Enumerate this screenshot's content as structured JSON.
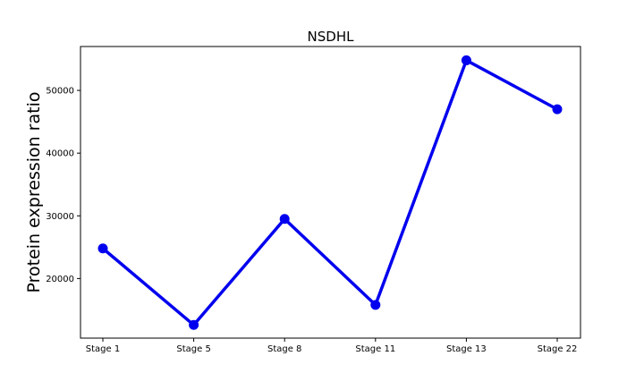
{
  "chart_data": {
    "type": "line",
    "title": "NSDHL",
    "xlabel": "",
    "ylabel": "Protein expression ratio",
    "categories": [
      "Stage 1",
      "Stage 5",
      "Stage 8",
      "Stage 11",
      "Stage 13",
      "Stage 22"
    ],
    "series": [
      {
        "values": [
          24800,
          12600,
          29500,
          15800,
          54800,
          47000
        ],
        "color": "#0000ee"
      }
    ],
    "yticks": [
      20000,
      30000,
      40000,
      50000
    ],
    "ylim": [
      10500,
      57000
    ],
    "grid": false,
    "legend": "none"
  }
}
